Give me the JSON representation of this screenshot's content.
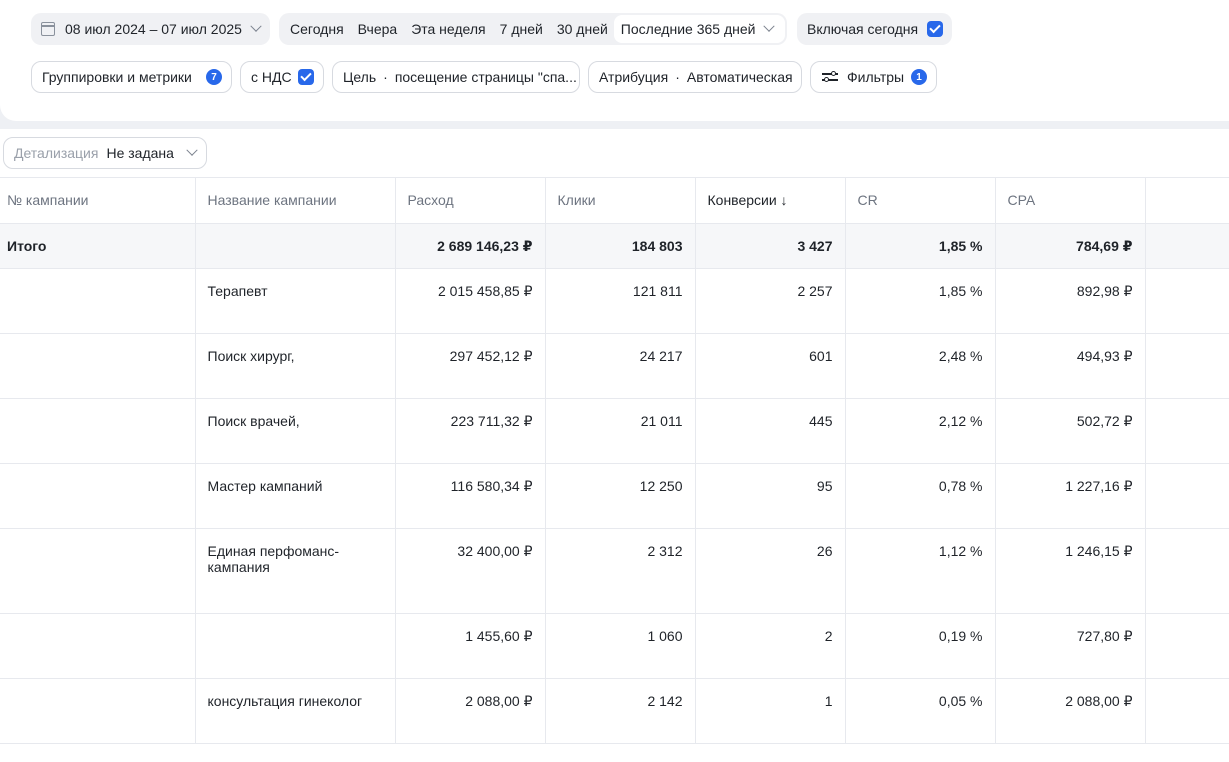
{
  "toolbar": {
    "date_range": "08 июл 2024 – 07 июл 2025",
    "periods": [
      "Сегодня",
      "Вчера",
      "Эта неделя",
      "7 дней",
      "30 дней"
    ],
    "selected_period": "Последние 365 дней",
    "include_today_label": "Включая сегодня",
    "include_today_checked": true,
    "groupings_label": "Группировки и метрики",
    "groupings_count": "7",
    "vat_label": "с НДС",
    "vat_checked": true,
    "goal_label": "Цель",
    "goal_value": "посещение страницы \"спа...",
    "attribution_label": "Атрибуция",
    "attribution_value": "Автоматическая",
    "filters_label": "Фильтры",
    "filters_count": "1"
  },
  "detail": {
    "label": "Детализация",
    "value": "Не задана"
  },
  "table": {
    "columns": [
      "№ кампании",
      "Название кампании",
      "Расход",
      "Клики",
      "Конверсии ↓",
      "CR",
      "CPA"
    ],
    "total": {
      "label": "Итого",
      "cost": "2 689 146,23 ₽",
      "clicks": "184 803",
      "conversions": "3 427",
      "cr": "1,85 %",
      "cpa": "784,69 ₽"
    },
    "rows": [
      {
        "id": "",
        "name": "Терапевт",
        "cost": "2 015 458,85 ₽",
        "clicks": "121 811",
        "conversions": "2 257",
        "cr": "1,85 %",
        "cpa": "892,98 ₽"
      },
      {
        "id": "",
        "name": "Поиск хирург,",
        "cost": "297 452,12 ₽",
        "clicks": "24 217",
        "conversions": "601",
        "cr": "2,48 %",
        "cpa": "494,93 ₽"
      },
      {
        "id": "",
        "name": "Поиск врачей,",
        "cost": "223 711,32 ₽",
        "clicks": "21 011",
        "conversions": "445",
        "cr": "2,12 %",
        "cpa": "502,72 ₽"
      },
      {
        "id": "",
        "name": "Мастер кампаний",
        "cost": "116 580,34 ₽",
        "clicks": "12 250",
        "conversions": "95",
        "cr": "0,78 %",
        "cpa": "1 227,16 ₽"
      },
      {
        "id": "",
        "name": "Единая перфоманс-кампания",
        "cost": "32 400,00 ₽",
        "clicks": "2 312",
        "conversions": "26",
        "cr": "1,12 %",
        "cpa": "1 246,15 ₽"
      },
      {
        "id": "",
        "name": "",
        "cost": "1 455,60 ₽",
        "clicks": "1 060",
        "conversions": "2",
        "cr": "0,19 %",
        "cpa": "727,80 ₽"
      },
      {
        "id": "",
        "name": "консультация гинеколог",
        "cost": "2 088,00 ₽",
        "clicks": "2 142",
        "conversions": "1",
        "cr": "0,05 %",
        "cpa": "2 088,00 ₽"
      }
    ]
  }
}
